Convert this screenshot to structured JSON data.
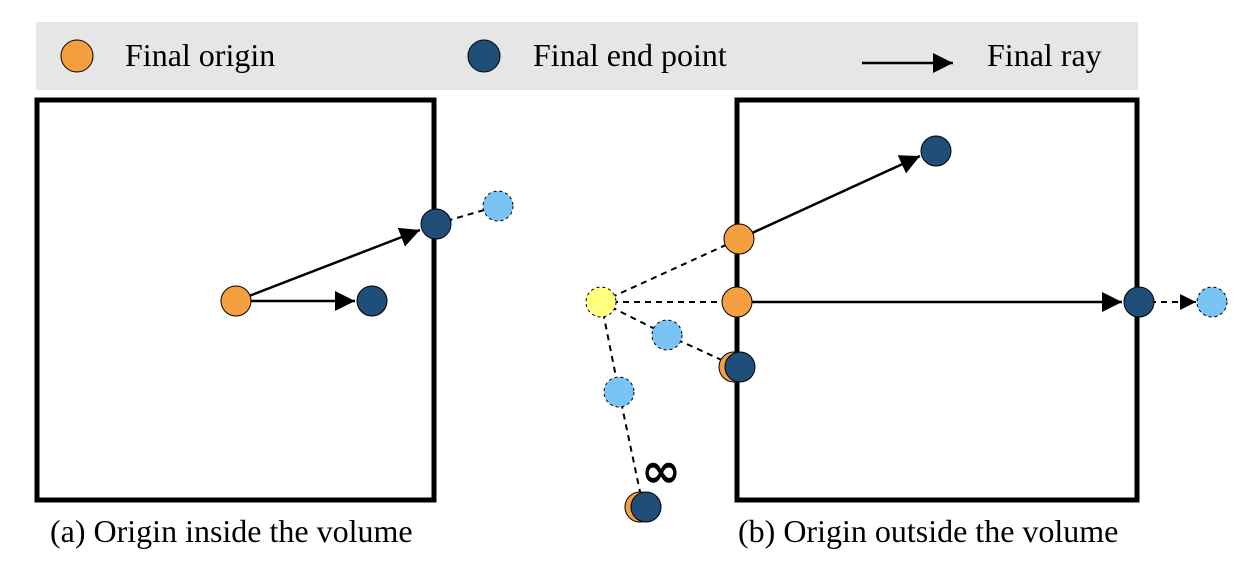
{
  "legend": {
    "origin_label": "Final origin",
    "end_point_label": "Final end point",
    "ray_label": "Final ray"
  },
  "panel_a": {
    "caption": "(a) Origin inside the volume"
  },
  "panel_b": {
    "caption": "(b) Origin outside the volume",
    "infinity_symbol": "∞"
  },
  "colors": {
    "origin": "#F4A040",
    "end_point": "#1F4E79",
    "intermediate_point": "#79C3F5",
    "camera_point": "#FFFF80",
    "legend_background": "#E6E6E6",
    "volume_border": "#000000"
  }
}
